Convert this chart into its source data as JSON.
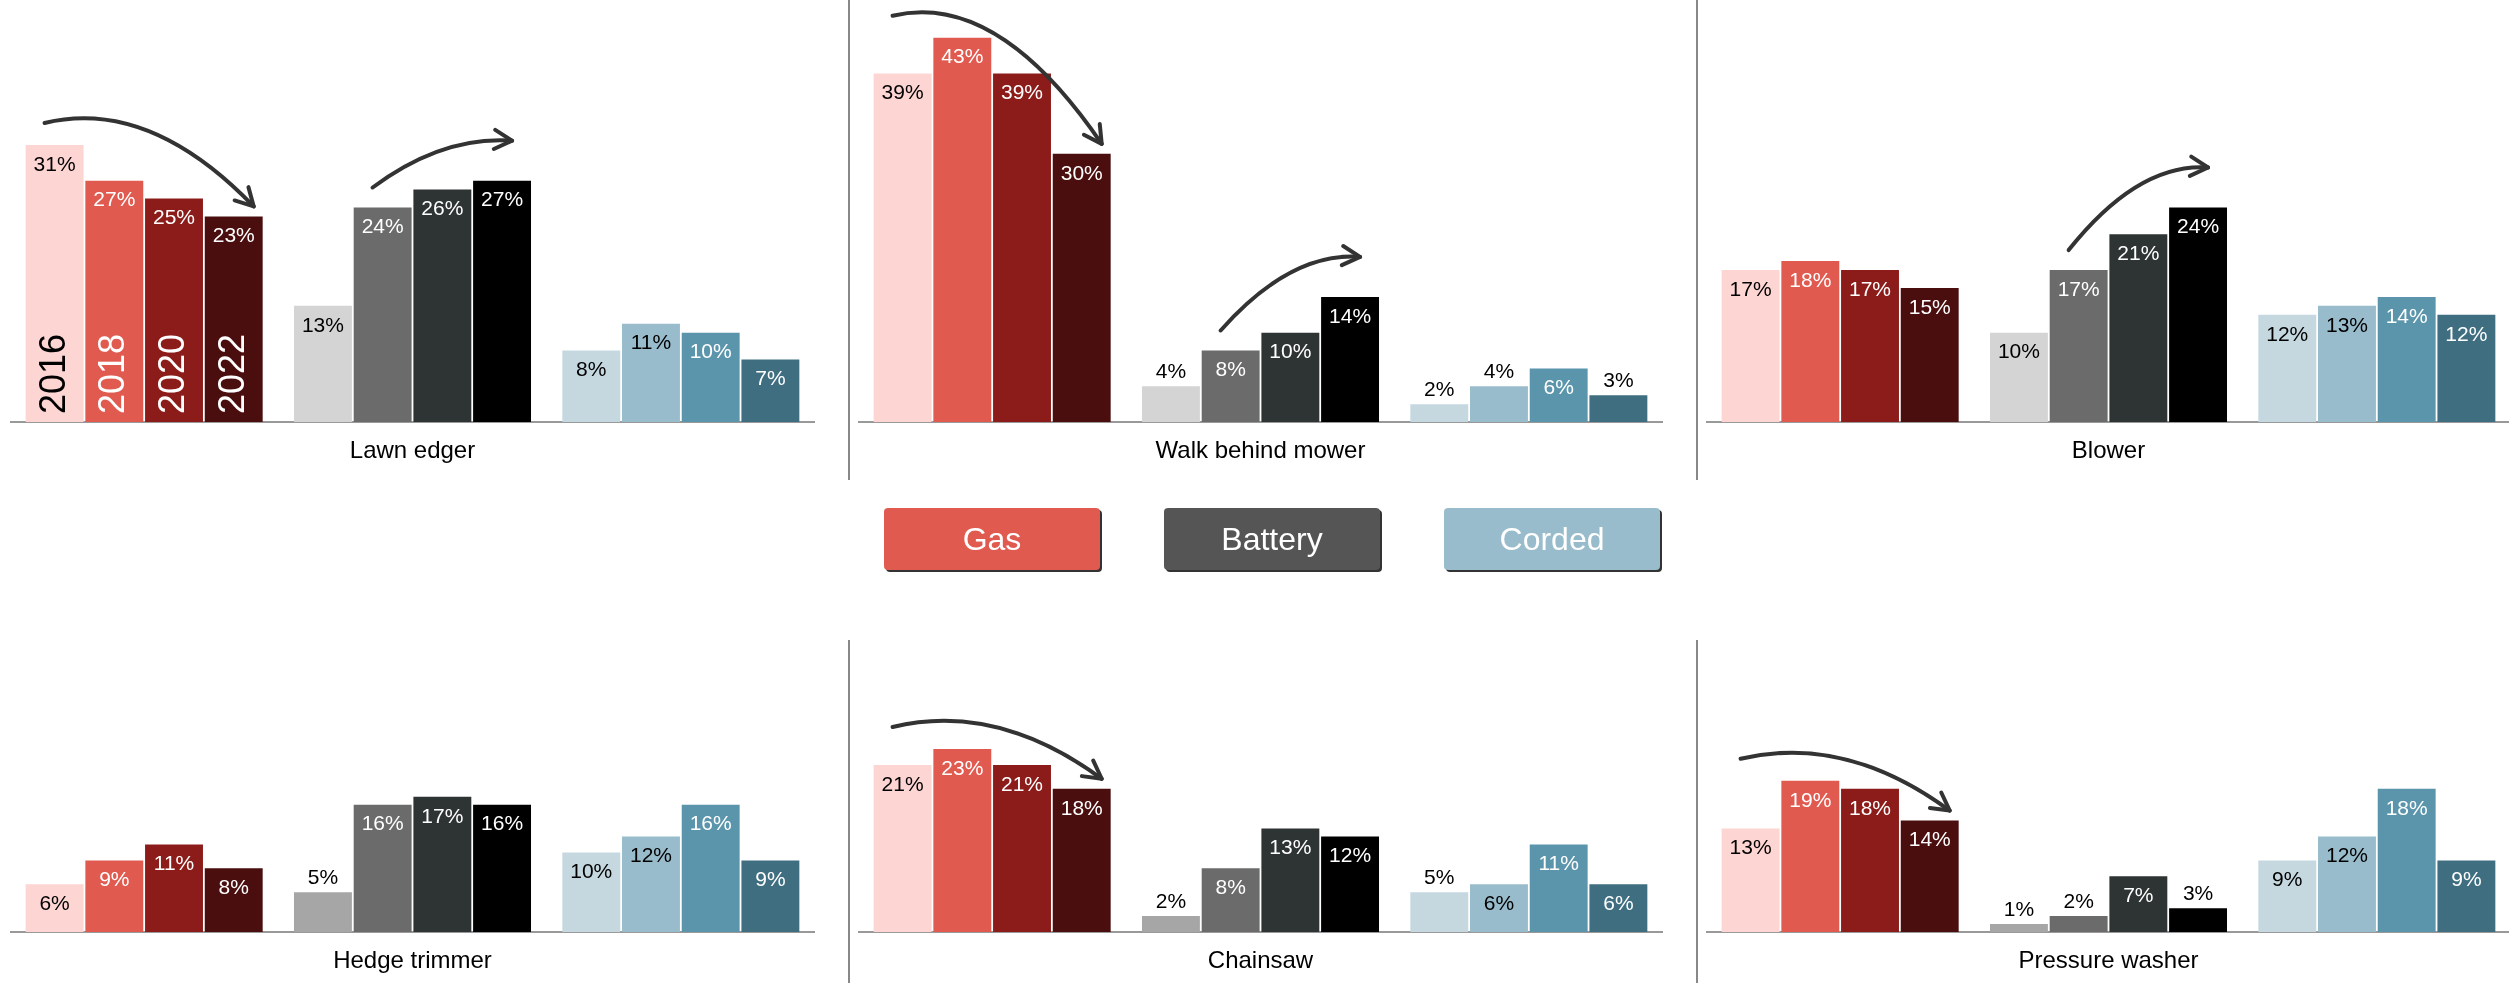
{
  "chart_data": [
    {
      "type": "bar",
      "xlabel": "Lawn edger",
      "categories": [
        null,
        null,
        null
      ],
      "series": [
        {
          "name": "2016",
          "colors": [
            "#fdd5d3",
            "#d4d4d4",
            "#c5d8e0"
          ],
          "values": [
            31,
            13,
            8
          ],
          "value_labels": [
            "31%",
            "13%",
            "8%"
          ]
        },
        {
          "name": "2018",
          "colors": [
            "#e05a50",
            "#6b6b6b",
            "#98bccb"
          ],
          "values": [
            27,
            24,
            11
          ],
          "value_labels": [
            "27%",
            "24%",
            "11%"
          ]
        },
        {
          "name": "2020",
          "colors": [
            "#8b1c1a",
            "#2e3433",
            "#5b95ab"
          ],
          "values": [
            25,
            26,
            10
          ],
          "value_labels": [
            "25%",
            "26%",
            "10%"
          ]
        },
        {
          "name": "2022",
          "colors": [
            "#4a0e0e",
            "#000000",
            "#3e6e80"
          ],
          "values": [
            23,
            27,
            7
          ],
          "value_labels": [
            "23%",
            "27%",
            "7%"
          ]
        }
      ]
    },
    {
      "type": "bar",
      "xlabel": "Walk behind mower",
      "categories": [
        null,
        null,
        null
      ],
      "series": [
        {
          "colors": [
            "#fdd5d3",
            "#d4d4d4",
            "#c5d8e0"
          ],
          "values": [
            39,
            4,
            2
          ],
          "value_labels": [
            "39%",
            "4%",
            "2%"
          ]
        },
        {
          "colors": [
            "#e05a50",
            "#6b6b6b",
            "#98bccb"
          ],
          "values": [
            43,
            8,
            4
          ],
          "value_labels": [
            "43%",
            "8%",
            "4%"
          ]
        },
        {
          "colors": [
            "#8b1c1a",
            "#2e3433",
            "#5b95ab"
          ],
          "values": [
            39,
            10,
            6
          ],
          "value_labels": [
            "39%",
            "10%",
            "6%"
          ]
        },
        {
          "colors": [
            "#4a0e0e",
            "#000000",
            "#3e6e80"
          ],
          "values": [
            30,
            14,
            3
          ],
          "value_labels": [
            "30%",
            "14%",
            "3%"
          ]
        }
      ]
    },
    {
      "type": "bar",
      "xlabel": "Blower",
      "categories": [
        null,
        null,
        null
      ],
      "series": [
        {
          "colors": [
            "#fdd5d3",
            "#d4d4d4",
            "#c5d8e0"
          ],
          "values": [
            17,
            10,
            12
          ],
          "value_labels": [
            "17%",
            "10%",
            "12%"
          ]
        },
        {
          "colors": [
            "#e05a50",
            "#6b6b6b",
            "#98bccb"
          ],
          "values": [
            18,
            17,
            13
          ],
          "value_labels": [
            "18%",
            "17%",
            "13%"
          ]
        },
        {
          "colors": [
            "#8b1c1a",
            "#2e3433",
            "#5b95ab"
          ],
          "values": [
            17,
            21,
            14
          ],
          "value_labels": [
            "17%",
            "21%",
            "14%"
          ]
        },
        {
          "colors": [
            "#4a0e0e",
            "#000000",
            "#3e6e80"
          ],
          "values": [
            15,
            24,
            12
          ],
          "value_labels": [
            "15%",
            "24%",
            "12%"
          ]
        }
      ]
    },
    {
      "type": "other",
      "annotations": [
        "Gas",
        "Battery",
        "Corded"
      ],
      "colors": [
        "#e05a50",
        "#555555",
        "#98bccb"
      ]
    },
    {
      "type": "bar",
      "xlabel": "Hedge trimmer",
      "categories": [
        null,
        null,
        null
      ],
      "series": [
        {
          "colors": [
            "#fdd5d3",
            "#a6a6a6",
            "#c5d8e0"
          ],
          "values": [
            6,
            5,
            10
          ],
          "value_labels": [
            "6%",
            "5%",
            "10%"
          ]
        },
        {
          "colors": [
            "#e05a50",
            "#6b6b6b",
            "#98bccb"
          ],
          "values": [
            9,
            16,
            12
          ],
          "value_labels": [
            "9%",
            "16%",
            "12%"
          ]
        },
        {
          "colors": [
            "#8b1c1a",
            "#2e3433",
            "#5b95ab"
          ],
          "values": [
            11,
            17,
            16
          ],
          "value_labels": [
            "11%",
            "17%",
            "16%"
          ]
        },
        {
          "colors": [
            "#4a0e0e",
            "#000000",
            "#3e6e80"
          ],
          "values": [
            8,
            16,
            9
          ],
          "value_labels": [
            "8%",
            "16%",
            "9%"
          ]
        }
      ]
    },
    {
      "type": "bar",
      "xlabel": "Chainsaw",
      "categories": [
        null,
        null,
        null
      ],
      "series": [
        {
          "colors": [
            "#fdd5d3",
            "#a6a6a6",
            "#c5d8e0"
          ],
          "values": [
            21,
            2,
            5
          ],
          "value_labels": [
            "21%",
            "2%",
            "5%"
          ]
        },
        {
          "colors": [
            "#e05a50",
            "#6b6b6b",
            "#98bccb"
          ],
          "values": [
            23,
            8,
            6
          ],
          "value_labels": [
            "23%",
            "8%",
            "6%"
          ]
        },
        {
          "colors": [
            "#8b1c1a",
            "#2e3433",
            "#5b95ab"
          ],
          "values": [
            21,
            13,
            11
          ],
          "value_labels": [
            "21%",
            "13%",
            "11%"
          ]
        },
        {
          "colors": [
            "#4a0e0e",
            "#000000",
            "#3e6e80"
          ],
          "values": [
            18,
            12,
            6
          ],
          "value_labels": [
            "18%",
            "12%",
            "6%"
          ]
        }
      ]
    },
    {
      "type": "bar",
      "xlabel": "Pressure washer",
      "categories": [
        null,
        null,
        null
      ],
      "series": [
        {
          "colors": [
            "#fdd5d3",
            "#a6a6a6",
            "#c5d8e0"
          ],
          "values": [
            13,
            1,
            9
          ],
          "value_labels": [
            "13%",
            "1%",
            "9%"
          ]
        },
        {
          "colors": [
            "#e05a50",
            "#6b6b6b",
            "#98bccb"
          ],
          "values": [
            19,
            2,
            12
          ],
          "value_labels": [
            "19%",
            "2%",
            "12%"
          ]
        },
        {
          "colors": [
            "#8b1c1a",
            "#2e3433",
            "#5b95ab"
          ],
          "values": [
            18,
            7,
            18
          ],
          "value_labels": [
            "18%",
            "7%",
            "18%"
          ]
        },
        {
          "colors": [
            "#4a0e0e",
            "#000000",
            "#3e6e80"
          ],
          "values": [
            14,
            3,
            9
          ],
          "value_labels": [
            "14%",
            "3%",
            "9%"
          ]
        }
      ]
    }
  ]
}
